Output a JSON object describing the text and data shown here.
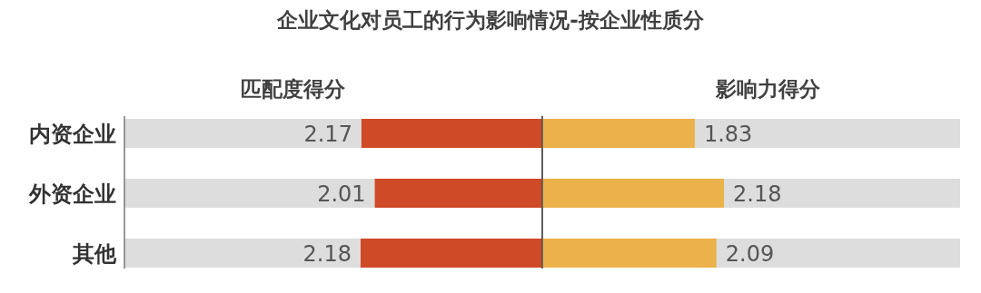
{
  "chart_data": [
    {
      "type": "bar",
      "orientation": "horizontal",
      "title": "企业文化对员工的行为影响情况-按企业性质分",
      "subtitle": "匹配度得分",
      "categories": [
        "内资企业",
        "外资企业",
        "其他"
      ],
      "values": [
        2.17,
        2.01,
        2.18
      ],
      "color": "#cf4a27",
      "data_labels": true
    },
    {
      "type": "bar",
      "orientation": "horizontal",
      "subtitle": "影响力得分",
      "categories": [
        null,
        null,
        null
      ],
      "values": [
        1.83,
        2.18,
        2.09
      ],
      "color": "#ebb14a",
      "data_labels": true,
      "tick_labels": false
    }
  ]
}
